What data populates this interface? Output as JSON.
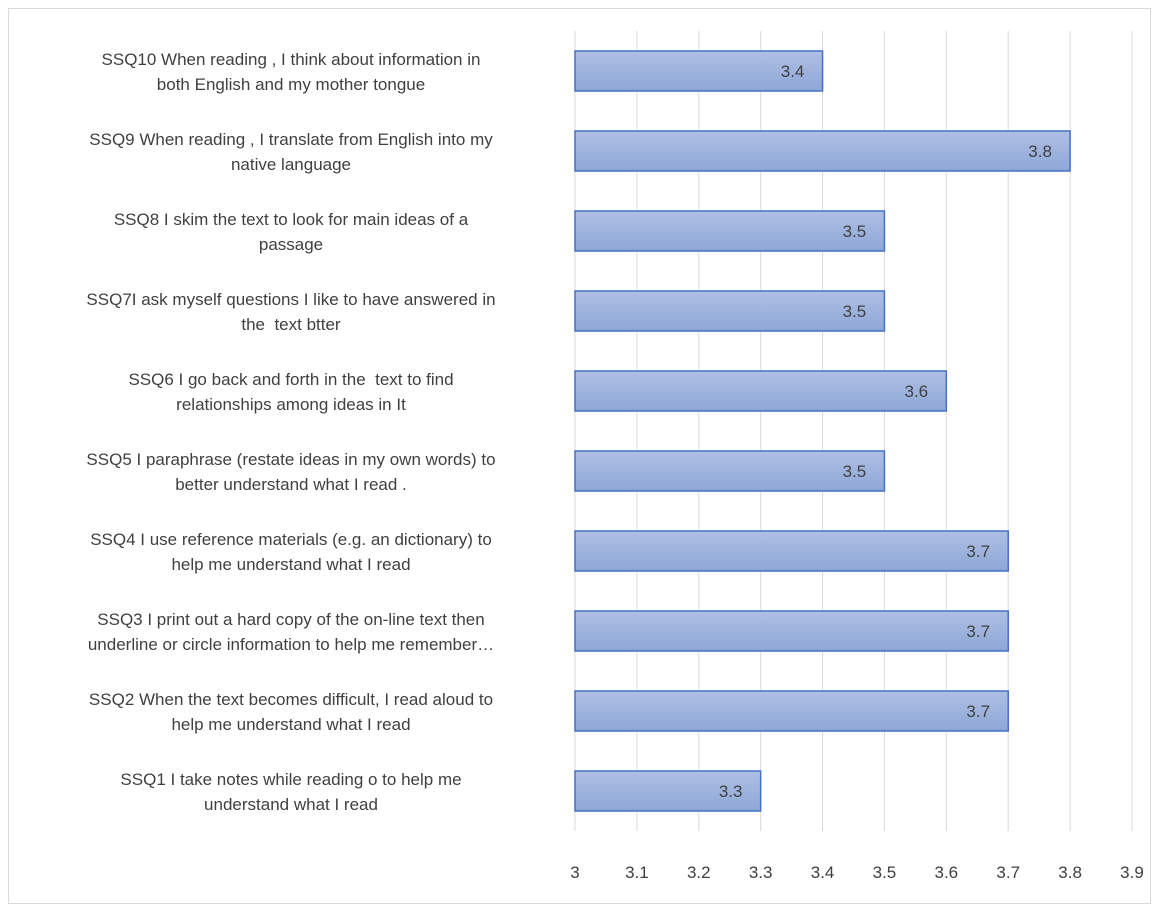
{
  "chart_data": {
    "type": "bar",
    "orientation": "horizontal",
    "categories": [
      [
        "SSQ10 When reading , I think about information in",
        "both English and my mother tongue"
      ],
      [
        "SSQ9 When reading , I translate from English into my",
        "native language"
      ],
      [
        "SSQ8 I skim the text to look for main ideas of a",
        "passage"
      ],
      [
        "SSQ7I ask myself questions I like to have answered in",
        "the  text btter"
      ],
      [
        "SSQ6 I go back and forth in the  text to find",
        "relationships among ideas in It"
      ],
      [
        "SSQ5 I paraphrase (restate ideas in my own words) to",
        "better understand what I read ."
      ],
      [
        "SSQ4 I use reference materials (e.g. an dictionary) to",
        "help me understand what I read"
      ],
      [
        "SSQ3 I print out a hard copy of the on-line text then",
        "underline or circle information to help me remember…"
      ],
      [
        "SSQ2 When the text becomes difficult, I read aloud to",
        "help me understand what I read"
      ],
      [
        "SSQ1 I take notes while reading o to help me",
        "understand what I read"
      ]
    ],
    "values": [
      3.4,
      3.8,
      3.5,
      3.5,
      3.6,
      3.5,
      3.7,
      3.7,
      3.7,
      3.3
    ],
    "data_labels": [
      "3.4",
      "3.8",
      "3.5",
      "3.5",
      "3.6",
      "3.5",
      "3.7",
      "3.7",
      "3.7",
      "3.3"
    ],
    "xlim": [
      3,
      3.9
    ],
    "x_ticks": [
      "3",
      "3.1",
      "3.2",
      "3.3",
      "3.4",
      "3.5",
      "3.6",
      "3.7",
      "3.8",
      "3.9"
    ],
    "title": "",
    "xlabel": "",
    "ylabel": "",
    "grid": "vertical",
    "legend": "none",
    "colors": {
      "bar_fill_top": "#aebfe3",
      "bar_fill_bottom": "#8ea7d8",
      "bar_border": "#4472c4",
      "grid": "#d9d9d9",
      "text": "#404040"
    }
  }
}
